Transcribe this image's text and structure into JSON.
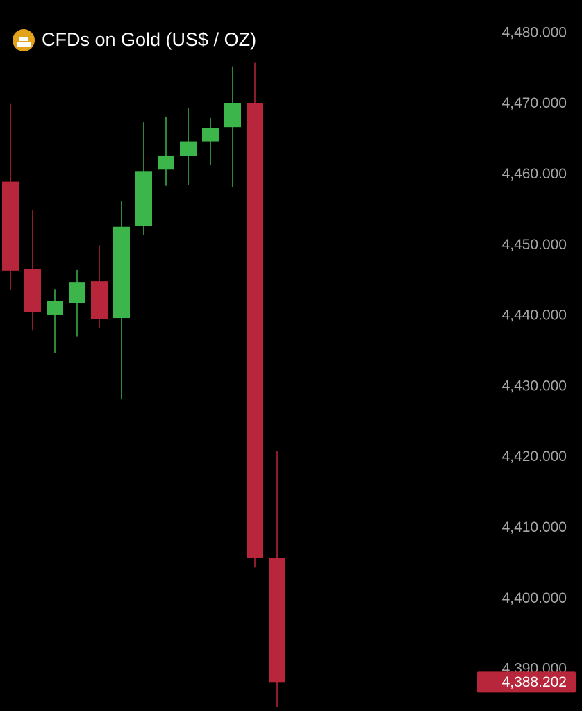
{
  "chart_data": {
    "type": "candlestick",
    "title": "CFDs on Gold (US$ / OZ)",
    "open": [
      4459.0,
      4446.6,
      4440.2,
      4441.8,
      4444.9,
      4439.7,
      4452.7,
      4460.7,
      4462.6,
      4464.7,
      4466.7,
      4470.1,
      4405.8
    ],
    "high": [
      4470.0,
      4455.0,
      4443.8,
      4446.5,
      4450.0,
      4456.3,
      4467.4,
      4468.2,
      4469.4,
      4468.0,
      4475.3,
      4475.8,
      4420.9
    ],
    "low": [
      4443.7,
      4438.0,
      4434.8,
      4437.1,
      4438.3,
      4428.2,
      4451.5,
      4458.4,
      4458.5,
      4461.4,
      4458.2,
      4404.4,
      4384.7
    ],
    "close": [
      4446.4,
      4440.5,
      4442.1,
      4444.8,
      4439.6,
      4452.6,
      4460.5,
      4462.7,
      4464.7,
      4466.6,
      4470.1,
      4405.8,
      4388.202
    ],
    "up_color": "#3cb54a",
    "down_color": "#b7263a",
    "ylim": [
      4384.5,
      4484.5
    ],
    "yticks": [
      {
        "value": 4480,
        "label": "4,480.000"
      },
      {
        "value": 4470,
        "label": "4,470.000"
      },
      {
        "value": 4460,
        "label": "4,460.000"
      },
      {
        "value": 4450,
        "label": "4,450.000"
      },
      {
        "value": 4440,
        "label": "4,440.000"
      },
      {
        "value": 4430,
        "label": "4,430.000"
      },
      {
        "value": 4420,
        "label": "4,420.000"
      },
      {
        "value": 4410,
        "label": "4,410.000"
      },
      {
        "value": 4400,
        "label": "4,400.000"
      },
      {
        "value": 4390,
        "label": "4,390.000"
      }
    ],
    "last_price": {
      "value": 4388.202,
      "label": "4,388.202"
    }
  }
}
